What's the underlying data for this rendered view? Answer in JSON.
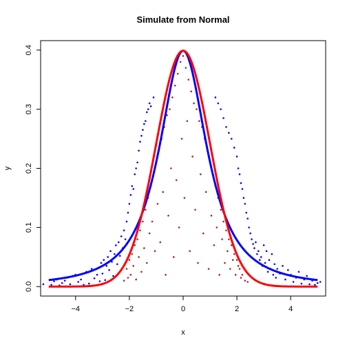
{
  "chart_data": {
    "type": "scatter",
    "title": "Simulate from Normal",
    "xlabel": "x",
    "ylabel": "y",
    "xlim": [
      -5.3,
      5.3
    ],
    "ylim": [
      -0.016,
      0.416
    ],
    "x_ticks": [
      -4,
      -2,
      0,
      2,
      4
    ],
    "x_tick_labels": [
      "−4",
      "−2",
      "0",
      "2",
      "4"
    ],
    "y_ticks": [
      0.0,
      0.1,
      0.2,
      0.3,
      0.4
    ],
    "y_tick_labels": [
      "0.0",
      "0.1",
      "0.2",
      "0.3",
      "0.4"
    ],
    "grid": false,
    "legend": "none",
    "series": [
      {
        "kind": "curve",
        "color": "#0000FF",
        "x_range": [
          -5,
          5
        ],
        "density": "t",
        "df": 1.5,
        "samples": [
          [
            -5.2,
            0.004
          ],
          [
            -4.9,
            0.003
          ],
          [
            -4.8,
            0.009
          ],
          [
            -4.7,
            0.012
          ],
          [
            -4.6,
            0.002
          ],
          [
            -4.5,
            0.006
          ],
          [
            -4.4,
            0.01
          ],
          [
            -4.3,
            0.015
          ],
          [
            -4.2,
            0.004
          ],
          [
            -4.1,
            0.018
          ],
          [
            -4.0,
            0.02
          ],
          [
            -3.9,
            0.008
          ],
          [
            -3.8,
            0.012
          ],
          [
            -3.7,
            0.003
          ],
          [
            -3.6,
            0.025
          ],
          [
            -3.5,
            0.005
          ],
          [
            -3.4,
            0.03
          ],
          [
            -3.3,
            0.014
          ],
          [
            -3.2,
            0.02
          ],
          [
            -3.15,
            0.032
          ],
          [
            -3.1,
            0.009
          ],
          [
            -3.05,
            0.04
          ],
          [
            -3.0,
            0.022
          ],
          [
            -2.95,
            0.045
          ],
          [
            -2.9,
            0.011
          ],
          [
            -2.85,
            0.035
          ],
          [
            -2.8,
            0.05
          ],
          [
            -2.75,
            0.028
          ],
          [
            -2.7,
            0.06
          ],
          [
            -2.65,
            0.042
          ],
          [
            -2.6,
            0.018
          ],
          [
            -2.55,
            0.055
          ],
          [
            -2.5,
            0.07
          ],
          [
            -2.45,
            0.038
          ],
          [
            -2.4,
            0.075
          ],
          [
            -2.35,
            0.052
          ],
          [
            -2.3,
            0.085
          ],
          [
            -2.25,
            0.065
          ],
          [
            -2.2,
            0.095
          ],
          [
            -2.15,
            0.08
          ],
          [
            -2.1,
            0.11
          ],
          [
            -2.05,
            0.125
          ],
          [
            -2.0,
            0.14
          ],
          [
            -1.95,
            0.155
          ],
          [
            -1.9,
            0.17
          ],
          [
            -1.85,
            0.165
          ],
          [
            -1.8,
            0.19
          ],
          [
            -1.75,
            0.2
          ],
          [
            -1.7,
            0.21
          ],
          [
            -1.65,
            0.23
          ],
          [
            -1.6,
            0.245
          ],
          [
            -1.55,
            0.255
          ],
          [
            -1.5,
            0.265
          ],
          [
            -1.45,
            0.275
          ],
          [
            -1.4,
            0.28
          ],
          [
            -1.35,
            0.295
          ],
          [
            -1.3,
            0.3
          ],
          [
            -1.25,
            0.31
          ],
          [
            -1.2,
            0.305
          ],
          [
            -1.1,
            0.32
          ],
          [
            1.2,
            0.32
          ],
          [
            1.3,
            0.31
          ],
          [
            1.4,
            0.3
          ],
          [
            1.5,
            0.285
          ],
          [
            1.6,
            0.27
          ],
          [
            1.7,
            0.26
          ],
          [
            1.8,
            0.25
          ],
          [
            1.9,
            0.235
          ],
          [
            2.0,
            0.22
          ],
          [
            2.05,
            0.2
          ],
          [
            2.1,
            0.19
          ],
          [
            2.15,
            0.175
          ],
          [
            2.2,
            0.165
          ],
          [
            2.25,
            0.15
          ],
          [
            2.3,
            0.14
          ],
          [
            2.35,
            0.125
          ],
          [
            2.4,
            0.115
          ],
          [
            2.45,
            0.1
          ],
          [
            2.5,
            0.09
          ],
          [
            2.55,
            0.08
          ],
          [
            2.6,
            0.072
          ],
          [
            2.65,
            0.065
          ],
          [
            2.7,
            0.075
          ],
          [
            2.75,
            0.055
          ],
          [
            2.8,
            0.06
          ],
          [
            2.85,
            0.045
          ],
          [
            2.9,
            0.05
          ],
          [
            2.95,
            0.035
          ],
          [
            3.0,
            0.07
          ],
          [
            3.05,
            0.04
          ],
          [
            3.1,
            0.06
          ],
          [
            3.15,
            0.025
          ],
          [
            3.2,
            0.045
          ],
          [
            3.25,
            0.03
          ],
          [
            3.3,
            0.055
          ],
          [
            3.35,
            0.02
          ],
          [
            3.4,
            0.038
          ],
          [
            3.45,
            0.015
          ],
          [
            3.5,
            0.03
          ],
          [
            3.6,
            0.022
          ],
          [
            3.7,
            0.035
          ],
          [
            3.8,
            0.012
          ],
          [
            3.9,
            0.028
          ],
          [
            4.0,
            0.02
          ],
          [
            4.1,
            0.008
          ],
          [
            4.2,
            0.015
          ],
          [
            4.3,
            0.025
          ],
          [
            4.4,
            0.005
          ],
          [
            4.5,
            0.012
          ],
          [
            4.6,
            0.018
          ],
          [
            4.7,
            0.004
          ],
          [
            4.8,
            0.01
          ],
          [
            4.9,
            0.003
          ],
          [
            5.0,
            0.006
          ],
          [
            5.1,
            0.008
          ]
        ]
      },
      {
        "kind": "curve",
        "color": "#FF0000",
        "x_range": [
          -5,
          5
        ],
        "density": "normal",
        "mean": 0,
        "sd": 1,
        "samples": [
          [
            -2.2,
            0.01
          ],
          [
            -2.1,
            0.03
          ],
          [
            -2.05,
            0.015
          ],
          [
            -2.0,
            0.045
          ],
          [
            -1.95,
            0.02
          ],
          [
            -1.9,
            0.055
          ],
          [
            -1.85,
            0.035
          ],
          [
            -1.8,
            0.07
          ],
          [
            -1.75,
            0.012
          ],
          [
            -1.7,
            0.08
          ],
          [
            -1.65,
            0.05
          ],
          [
            -1.6,
            0.095
          ],
          [
            -1.55,
            0.025
          ],
          [
            -1.5,
            0.11
          ],
          [
            -1.45,
            0.065
          ],
          [
            -1.4,
            0.13
          ],
          [
            -1.35,
            0.04
          ],
          [
            -1.3,
            0.15
          ],
          [
            -1.25,
            0.09
          ],
          [
            -1.2,
            0.17
          ],
          [
            -1.15,
            0.11
          ],
          [
            -1.1,
            0.19
          ],
          [
            -1.05,
            0.06
          ],
          [
            -1.0,
            0.21
          ],
          [
            -0.95,
            0.14
          ],
          [
            -0.9,
            0.23
          ],
          [
            -0.85,
            0.075
          ],
          [
            -0.8,
            0.25
          ],
          [
            -0.75,
            0.16
          ],
          [
            -0.7,
            0.27
          ],
          [
            -0.65,
            0.02
          ],
          [
            -0.6,
            0.29
          ],
          [
            -0.55,
            0.12
          ],
          [
            -0.5,
            0.3
          ],
          [
            -0.45,
            0.2
          ],
          [
            -0.4,
            0.32
          ],
          [
            -0.35,
            0.05
          ],
          [
            -0.3,
            0.34
          ],
          [
            -0.25,
            0.18
          ],
          [
            -0.2,
            0.36
          ],
          [
            -0.15,
            0.1
          ],
          [
            -0.1,
            0.38
          ],
          [
            -0.05,
            0.25
          ],
          [
            0.0,
            0.39
          ],
          [
            0.05,
            0.15
          ],
          [
            0.1,
            0.37
          ],
          [
            0.15,
            0.28
          ],
          [
            0.2,
            0.35
          ],
          [
            0.25,
            0.06
          ],
          [
            0.3,
            0.33
          ],
          [
            0.35,
            0.22
          ],
          [
            0.4,
            0.31
          ],
          [
            0.45,
            0.13
          ],
          [
            0.5,
            0.3
          ],
          [
            0.55,
            0.04
          ],
          [
            0.6,
            0.28
          ],
          [
            0.65,
            0.19
          ],
          [
            0.7,
            0.27
          ],
          [
            0.75,
            0.09
          ],
          [
            0.8,
            0.25
          ],
          [
            0.85,
            0.16
          ],
          [
            0.9,
            0.23
          ],
          [
            0.95,
            0.03
          ],
          [
            1.0,
            0.21
          ],
          [
            1.05,
            0.12
          ],
          [
            1.1,
            0.19
          ],
          [
            1.15,
            0.07
          ],
          [
            1.2,
            0.17
          ],
          [
            1.25,
            0.1
          ],
          [
            1.3,
            0.15
          ],
          [
            1.35,
            0.02
          ],
          [
            1.4,
            0.13
          ],
          [
            1.45,
            0.08
          ],
          [
            1.5,
            0.11
          ],
          [
            1.55,
            0.04
          ],
          [
            1.6,
            0.095
          ],
          [
            1.65,
            0.06
          ],
          [
            1.7,
            0.08
          ],
          [
            1.75,
            0.03
          ],
          [
            1.8,
            0.07
          ],
          [
            1.85,
            0.045
          ],
          [
            1.9,
            0.055
          ],
          [
            1.95,
            0.02
          ],
          [
            2.0,
            0.045
          ],
          [
            2.05,
            0.035
          ],
          [
            2.1,
            0.03
          ],
          [
            2.15,
            0.015
          ],
          [
            2.2,
            0.02
          ],
          [
            2.3,
            0.01
          ],
          [
            2.4,
            0.008
          ]
        ]
      }
    ]
  }
}
